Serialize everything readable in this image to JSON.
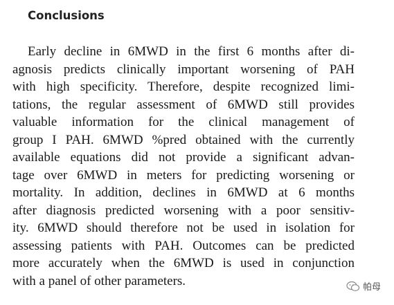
{
  "section": {
    "heading": "Conclusions",
    "lines": [
      "Early decline in 6MWD in the first 6 months after di-",
      "agnosis predicts clinically important worsening of PAH",
      "with high specificity. Therefore, despite recognized limi-",
      "tations, the regular assessment of 6MWD still provides",
      "valuable information for the clinical management of",
      "group I PAH. 6MWD %pred obtained with the currently",
      "available equations did not provide a significant advan-",
      "tage over 6MWD in meters for predicting worsening or",
      "mortality. In addition, declines in 6MWD at 6 months",
      "after diagnosis predicted worsening with a poor sensitiv-",
      "ity. 6MWD should therefore not be used in isolation for",
      "assessing patients with PAH. Outcomes can be predicted",
      "more accurately when the 6MWD is used in conjunction",
      "with a panel of other parameters."
    ]
  },
  "watermark": "帕母"
}
